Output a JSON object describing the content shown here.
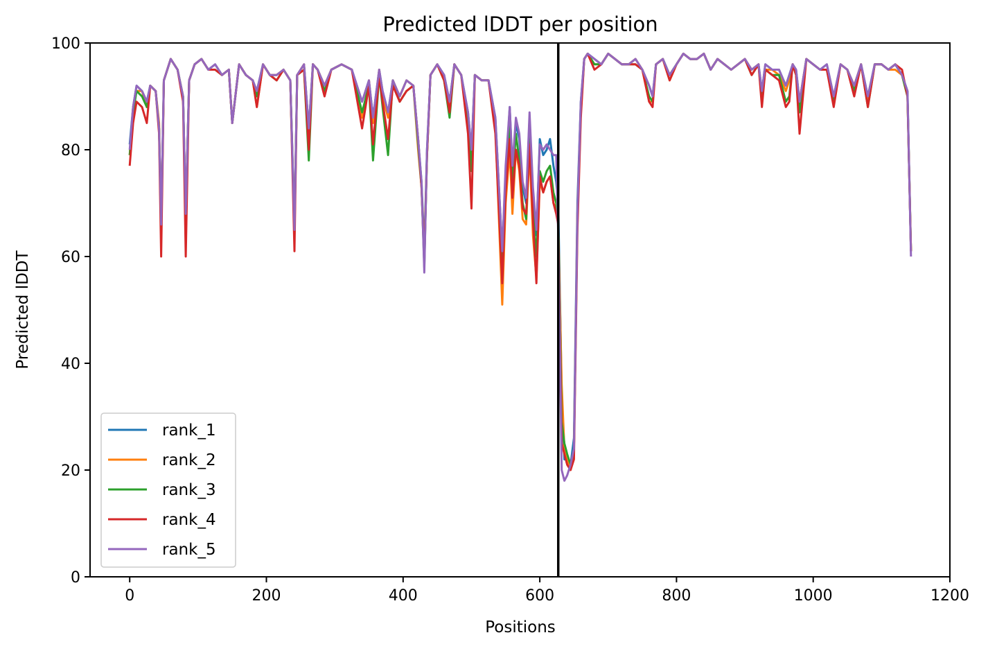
{
  "chart_data": {
    "type": "line",
    "title": "Predicted lDDT per position",
    "xlabel": "Positions",
    "ylabel": "Predicted lDDT",
    "xlim": [
      -58,
      1200
    ],
    "ylim": [
      0,
      100
    ],
    "x_ticks": [
      0,
      200,
      400,
      600,
      800,
      1000,
      1200
    ],
    "y_ticks": [
      0,
      20,
      40,
      60,
      80,
      100
    ],
    "grid": false,
    "legend_position": "lower-left",
    "chain_break_x": 627,
    "chain_break_color": "#000000",
    "x": [
      0,
      5,
      10,
      18,
      25,
      30,
      38,
      43,
      46,
      50,
      60,
      70,
      78,
      82,
      87,
      95,
      105,
      115,
      125,
      135,
      145,
      150,
      160,
      170,
      180,
      186,
      195,
      205,
      215,
      225,
      235,
      241,
      245,
      255,
      262,
      268,
      275,
      285,
      295,
      310,
      325,
      340,
      350,
      356,
      365,
      370,
      378,
      385,
      395,
      405,
      415,
      422,
      427,
      431,
      435,
      440,
      450,
      460,
      468,
      475,
      485,
      495,
      500,
      505,
      515,
      525,
      535,
      545,
      550,
      556,
      560,
      565,
      570,
      575,
      580,
      585,
      590,
      595,
      600,
      605,
      610,
      615,
      620,
      624,
      627,
      632,
      636,
      640,
      645,
      650,
      655,
      660,
      665,
      670,
      680,
      690,
      700,
      710,
      720,
      730,
      740,
      750,
      760,
      765,
      770,
      780,
      790,
      800,
      810,
      820,
      830,
      840,
      850,
      860,
      870,
      880,
      890,
      900,
      910,
      920,
      925,
      930,
      940,
      950,
      960,
      965,
      970,
      975,
      980,
      990,
      1000,
      1010,
      1020,
      1030,
      1040,
      1050,
      1060,
      1070,
      1080,
      1090,
      1100,
      1110,
      1120,
      1130,
      1138,
      1143
    ],
    "series": [
      {
        "name": "rank_1",
        "color": "#1f77b4",
        "values": [
          81,
          88,
          92,
          91,
          89,
          92,
          91,
          84,
          66,
          93,
          97,
          95,
          90,
          68,
          93,
          96,
          97,
          95,
          96,
          94,
          95,
          85,
          96,
          94,
          93,
          91,
          96,
          94,
          94,
          95,
          93,
          66,
          94,
          96,
          84,
          96,
          95,
          92,
          95,
          96,
          95,
          89,
          93,
          86,
          95,
          91,
          87,
          93,
          90,
          93,
          92,
          82,
          74,
          61,
          80,
          94,
          96,
          94,
          89,
          96,
          94,
          87,
          80,
          94,
          93,
          93,
          86,
          61,
          75,
          88,
          76,
          85,
          82,
          73,
          70,
          86,
          72,
          64,
          82,
          79,
          80,
          82,
          77,
          74,
          70,
          34,
          22,
          22,
          21,
          26,
          70,
          89,
          97,
          98,
          97,
          96,
          98,
          97,
          96,
          96,
          97,
          95,
          92,
          90,
          96,
          97,
          94,
          96,
          98,
          97,
          97,
          98,
          95,
          97,
          96,
          95,
          96,
          97,
          95,
          96,
          91,
          96,
          95,
          95,
          92,
          94,
          96,
          95,
          89,
          97,
          96,
          95,
          96,
          90,
          96,
          95,
          92,
          96,
          90,
          96,
          96,
          95,
          96,
          94,
          91,
          61
        ]
      },
      {
        "name": "rank_2",
        "color": "#ff7f0e",
        "values": [
          79,
          88,
          91,
          91,
          88,
          92,
          91,
          85,
          65,
          93,
          97,
          95,
          90,
          68,
          93,
          96,
          97,
          95,
          95,
          94,
          95,
          85,
          96,
          94,
          93,
          88,
          96,
          94,
          94,
          95,
          93,
          65,
          94,
          96,
          83,
          96,
          95,
          92,
          95,
          96,
          95,
          86,
          93,
          85,
          95,
          90,
          86,
          93,
          90,
          93,
          92,
          80,
          73,
          60,
          79,
          94,
          96,
          93,
          88,
          96,
          94,
          86,
          79,
          94,
          93,
          93,
          84,
          51,
          70,
          80,
          68,
          80,
          76,
          67,
          66,
          80,
          64,
          56,
          74,
          72,
          74,
          75,
          70,
          69,
          66,
          36,
          24,
          22,
          20,
          24,
          68,
          88,
          97,
          98,
          96,
          96,
          98,
          97,
          96,
          96,
          97,
          95,
          89,
          89,
          96,
          97,
          93,
          96,
          98,
          97,
          97,
          98,
          95,
          97,
          96,
          95,
          96,
          97,
          95,
          96,
          90,
          95,
          95,
          94,
          91,
          93,
          96,
          94,
          89,
          97,
          96,
          95,
          95,
          89,
          96,
          95,
          92,
          96,
          89,
          96,
          96,
          95,
          95,
          94,
          90,
          61
        ]
      },
      {
        "name": "rank_3",
        "color": "#2ca02c",
        "values": [
          79,
          87,
          91,
          90,
          88,
          92,
          91,
          84,
          64,
          93,
          97,
          95,
          90,
          67,
          93,
          96,
          97,
          95,
          95,
          94,
          95,
          85,
          96,
          94,
          93,
          90,
          96,
          94,
          93,
          95,
          93,
          64,
          94,
          95,
          78,
          96,
          95,
          91,
          95,
          96,
          95,
          87,
          92,
          78,
          94,
          88,
          79,
          93,
          89,
          91,
          92,
          81,
          73,
          58,
          79,
          94,
          96,
          93,
          86,
          96,
          94,
          85,
          76,
          94,
          93,
          93,
          85,
          56,
          73,
          85,
          74,
          83,
          78,
          70,
          67,
          83,
          68,
          60,
          76,
          74,
          76,
          77,
          72,
          70,
          67,
          29,
          25,
          23,
          21,
          24,
          67,
          87,
          97,
          98,
          96,
          96,
          98,
          97,
          96,
          96,
          96,
          95,
          90,
          89,
          96,
          97,
          94,
          96,
          98,
          97,
          97,
          98,
          95,
          97,
          96,
          95,
          96,
          97,
          94,
          96,
          89,
          95,
          94,
          94,
          89,
          90,
          96,
          94,
          87,
          97,
          96,
          95,
          95,
          89,
          96,
          95,
          91,
          96,
          88,
          96,
          96,
          95,
          96,
          94,
          90,
          61
        ]
      },
      {
        "name": "rank_4",
        "color": "#d62728",
        "values": [
          77,
          85,
          89,
          88,
          85,
          92,
          91,
          83,
          60,
          93,
          97,
          95,
          89,
          60,
          93,
          96,
          97,
          95,
          95,
          94,
          95,
          85,
          96,
          94,
          93,
          88,
          96,
          94,
          93,
          95,
          93,
          61,
          94,
          95,
          80,
          96,
          95,
          90,
          95,
          96,
          95,
          84,
          92,
          81,
          94,
          89,
          82,
          92,
          89,
          91,
          92,
          82,
          73,
          59,
          79,
          94,
          96,
          93,
          87,
          96,
          94,
          83,
          69,
          94,
          93,
          93,
          83,
          55,
          72,
          82,
          71,
          80,
          77,
          69,
          68,
          81,
          67,
          55,
          75,
          72,
          74,
          75,
          70,
          68,
          66,
          25,
          23,
          21,
          20,
          22,
          65,
          86,
          97,
          98,
          95,
          96,
          98,
          97,
          96,
          96,
          96,
          95,
          89,
          88,
          96,
          97,
          93,
          96,
          98,
          97,
          97,
          98,
          95,
          97,
          96,
          95,
          96,
          97,
          94,
          96,
          88,
          95,
          94,
          93,
          88,
          89,
          96,
          94,
          83,
          97,
          96,
          95,
          95,
          88,
          96,
          95,
          90,
          96,
          88,
          96,
          96,
          95,
          96,
          95,
          90,
          61
        ]
      },
      {
        "name": "rank_5",
        "color": "#9467bd",
        "values": [
          80,
          88,
          92,
          91,
          89,
          92,
          91,
          84,
          66,
          93,
          97,
          95,
          90,
          68,
          93,
          96,
          97,
          95,
          96,
          94,
          95,
          85,
          96,
          94,
          93,
          91,
          96,
          94,
          94,
          95,
          93,
          65,
          94,
          96,
          84,
          96,
          95,
          92,
          95,
          96,
          95,
          89,
          93,
          86,
          95,
          91,
          87,
          93,
          90,
          93,
          92,
          82,
          74,
          57,
          80,
          94,
          96,
          94,
          89,
          96,
          94,
          87,
          80,
          94,
          93,
          93,
          86,
          61,
          77,
          88,
          77,
          86,
          83,
          74,
          71,
          87,
          73,
          65,
          81,
          80,
          81,
          80,
          79,
          79,
          64,
          20,
          18,
          19,
          21,
          24,
          68,
          89,
          97,
          98,
          97,
          96,
          98,
          97,
          96,
          96,
          97,
          95,
          92,
          90,
          96,
          97,
          94,
          96,
          98,
          97,
          97,
          98,
          95,
          97,
          96,
          95,
          96,
          97,
          95,
          96,
          91,
          96,
          95,
          95,
          92,
          94,
          96,
          95,
          89,
          97,
          96,
          95,
          96,
          90,
          96,
          95,
          92,
          96,
          90,
          96,
          96,
          95,
          96,
          94,
          91,
          60
        ]
      }
    ]
  }
}
